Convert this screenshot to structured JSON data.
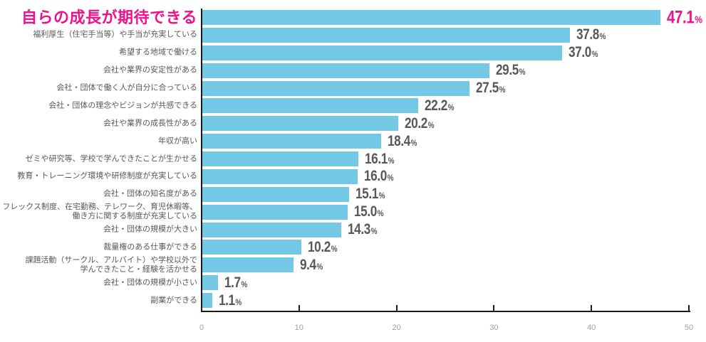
{
  "chart_data": {
    "type": "bar",
    "orientation": "horizontal",
    "title": "自らの成長が期待できる",
    "categories": [
      "自らの成長が期待できる",
      "福利厚生（住宅手当等）や手当が充実している",
      "希望する地域で働ける",
      "会社や業界の安定性がある",
      "会社・団体で働く人が自分に合っている",
      "会社・団体の理念やビジョンが共感できる",
      "会社や業界の成長性がある",
      "年収が高い",
      "ゼミや研究等、学校で学んできたことが生かせる",
      "教育・トレーニング環境や研修制度が充実している",
      "会社・団体の知名度がある",
      "フレックス制度、在宅勤務、テレワーク、育児休暇等、\n働き方に関する制度が充実している",
      "会社・団体の規模が大きい",
      "裁量権のある仕事ができる",
      "課題活動（サークル、アルバイト）や学校以外で\n学んできたこと・経験を活かせる",
      "会社・団体の規模が小さい",
      "副業ができる"
    ],
    "values": [
      47.1,
      37.8,
      37.0,
      29.5,
      27.5,
      22.2,
      20.2,
      18.4,
      16.1,
      16.0,
      15.1,
      15.0,
      14.3,
      10.2,
      9.4,
      1.7,
      1.1
    ],
    "value_labels": [
      "47.1%",
      "37.8%",
      "37.0%",
      "29.5%",
      "27.5%",
      "22.2%",
      "20.2%",
      "18.4%",
      "16.1%",
      "16.0%",
      "15.1%",
      "15.0%",
      "14.3%",
      "10.2%",
      "9.4%",
      "1.7%",
      "1.1%"
    ],
    "unit": "%",
    "xlim": [
      0,
      50
    ],
    "x_ticks": [
      "0",
      "10",
      "20",
      "30",
      "40",
      "50"
    ],
    "grid": "off",
    "legend": "none",
    "highlight_index": 0,
    "colors": {
      "bar": "#72c8e5",
      "highlight_text": "#ec148c",
      "value_text": "#595757",
      "label_text": "#595757",
      "axis_line": "#1a1a1a",
      "tick_label_text": "#9fa0a0",
      "background": "#ffffff"
    }
  }
}
